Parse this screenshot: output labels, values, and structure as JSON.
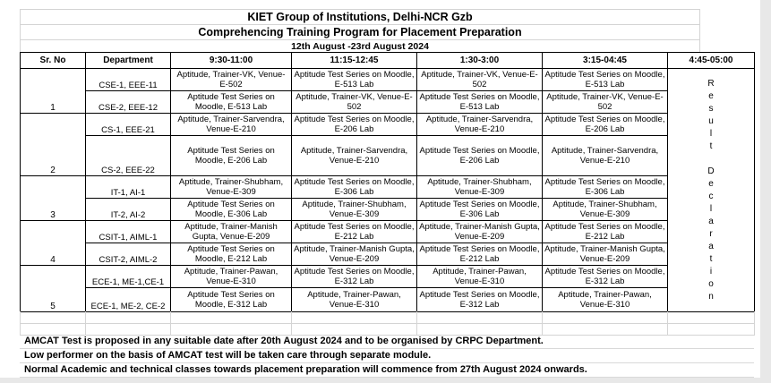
{
  "sheet": {
    "title": "KIET Group of Institutions, Delhi-NCR Gzb",
    "subtitle": "Comprehencing Training Program for Placement Preparation",
    "date_range": "12th August -23rd August 2024"
  },
  "table": {
    "columns": [
      "Sr. No",
      "Department",
      "9:30-11:00",
      "11:15-12:45",
      "1:30-3:00",
      "3:15-04:45",
      "4:45-05:00"
    ],
    "result_column": {
      "words": [
        "Result",
        "Declaration"
      ]
    },
    "groups": [
      {
        "sr": "1",
        "rows": [
          {
            "dept": "CSE-1, EEE-11",
            "slots": [
              "Aptitude, Trainer-VK, Venue-E-502",
              "Aptitude Test Series on Moodle, E-513 Lab",
              "Aptitude, Trainer-VK, Venue-E-502",
              "Aptitude Test Series on Moodle, E-513 Lab"
            ]
          },
          {
            "dept": "CSE-2, EEE-12",
            "slots": [
              "Aptitude Test Series on Moodle, E-513 Lab",
              "Aptitude, Trainer-VK, Venue-E-502",
              "Aptitude Test Series on Moodle, E-513 Lab",
              "Aptitude, Trainer-VK, Venue-E-502"
            ]
          }
        ]
      },
      {
        "sr": "2",
        "rows": [
          {
            "dept": "CS-1, EEE-21",
            "slots": [
              "Aptitude, Trainer-Sarvendra, Venue-E-210",
              "Aptitude Test Series on Moodle, E-206 Lab",
              "Aptitude, Trainer-Sarvendra, Venue-E-210",
              "Aptitude Test Series on Moodle, E-206 Lab"
            ]
          },
          {
            "dept": "CS-2, EEE-22",
            "slots": [
              "Aptitude Test Series on Moodle, E-206 Lab",
              "Aptitude, Trainer-Sarvendra, Venue-E-210",
              "Aptitude Test Series on Moodle, E-206 Lab",
              "Aptitude, Trainer-Sarvendra, Venue-E-210"
            ]
          }
        ]
      },
      {
        "sr": "3",
        "rows": [
          {
            "dept": "IT-1, AI-1",
            "slots": [
              "Aptitude, Trainer-Shubham, Venue-E-309",
              "Aptitude Test Series on Moodle, E-306 Lab",
              "Aptitude, Trainer-Shubham, Venue-E-309",
              "Aptitude Test Series on Moodle, E-306 Lab"
            ]
          },
          {
            "dept": "IT-2, AI-2",
            "slots": [
              "Aptitude Test Series on Moodle, E-306 Lab",
              "Aptitude, Trainer-Shubham, Venue-E-309",
              "Aptitude Test Series on Moodle, E-306 Lab",
              "Aptitude, Trainer-Shubham, Venue-E-309"
            ]
          }
        ]
      },
      {
        "sr": "4",
        "rows": [
          {
            "dept": "CSIT-1, AIML-1",
            "slots": [
              "Aptitude, Trainer-Manish Gupta, Venue-E-209",
              "Aptitude Test Series on Moodle, E-212 Lab",
              "Aptitude, Trainer-Manish Gupta, Venue-E-209",
              "Aptitude Test Series on Moodle, E-212 Lab"
            ]
          },
          {
            "dept": "CSIT-2, AIML-2",
            "slots": [
              "Aptitude Test Series on Moodle, E-212 Lab",
              "Aptitude, Trainer-Manish Gupta, Venue-E-209",
              "Aptitude Test Series on Moodle, E-212 Lab",
              "Aptitude, Trainer-Manish Gupta, Venue-E-209"
            ]
          }
        ]
      },
      {
        "sr": "5",
        "rows": [
          {
            "dept": "ECE-1, ME-1,CE-1",
            "slots": [
              "Aptitude, Trainer-Pawan, Venue-E-310",
              "Aptitude Test Series on Moodle, E-312 Lab",
              "Aptitude, Trainer-Pawan, Venue-E-310",
              "Aptitude Test Series on Moodle, E-312 Lab"
            ]
          },
          {
            "dept": "ECE-1, ME-2, CE-2",
            "slots": [
              "Aptitude Test Series on Moodle, E-312 Lab",
              "Aptitude, Trainer-Pawan, Venue-E-310",
              "Aptitude Test Series on Moodle, E-312 Lab",
              "Aptitude, Trainer-Pawan, Venue-E-310"
            ]
          }
        ]
      }
    ]
  },
  "notes": [
    "AMCAT Test is proposed in any suitable date after 20th August 2024 and to be organised by CRPC Department.",
    "Low performer on the basis of AMCAT test will be taken care through separate module.",
    "Normal Academic and technical classes towards placement preparation will commence from 27th August 2024 onwards."
  ],
  "colors": {
    "text": "#000000",
    "table_border": "#000000",
    "gridline": "#d4d4d4",
    "sheet_background": "#ffffff",
    "outside_background": "#e8e8e8"
  }
}
